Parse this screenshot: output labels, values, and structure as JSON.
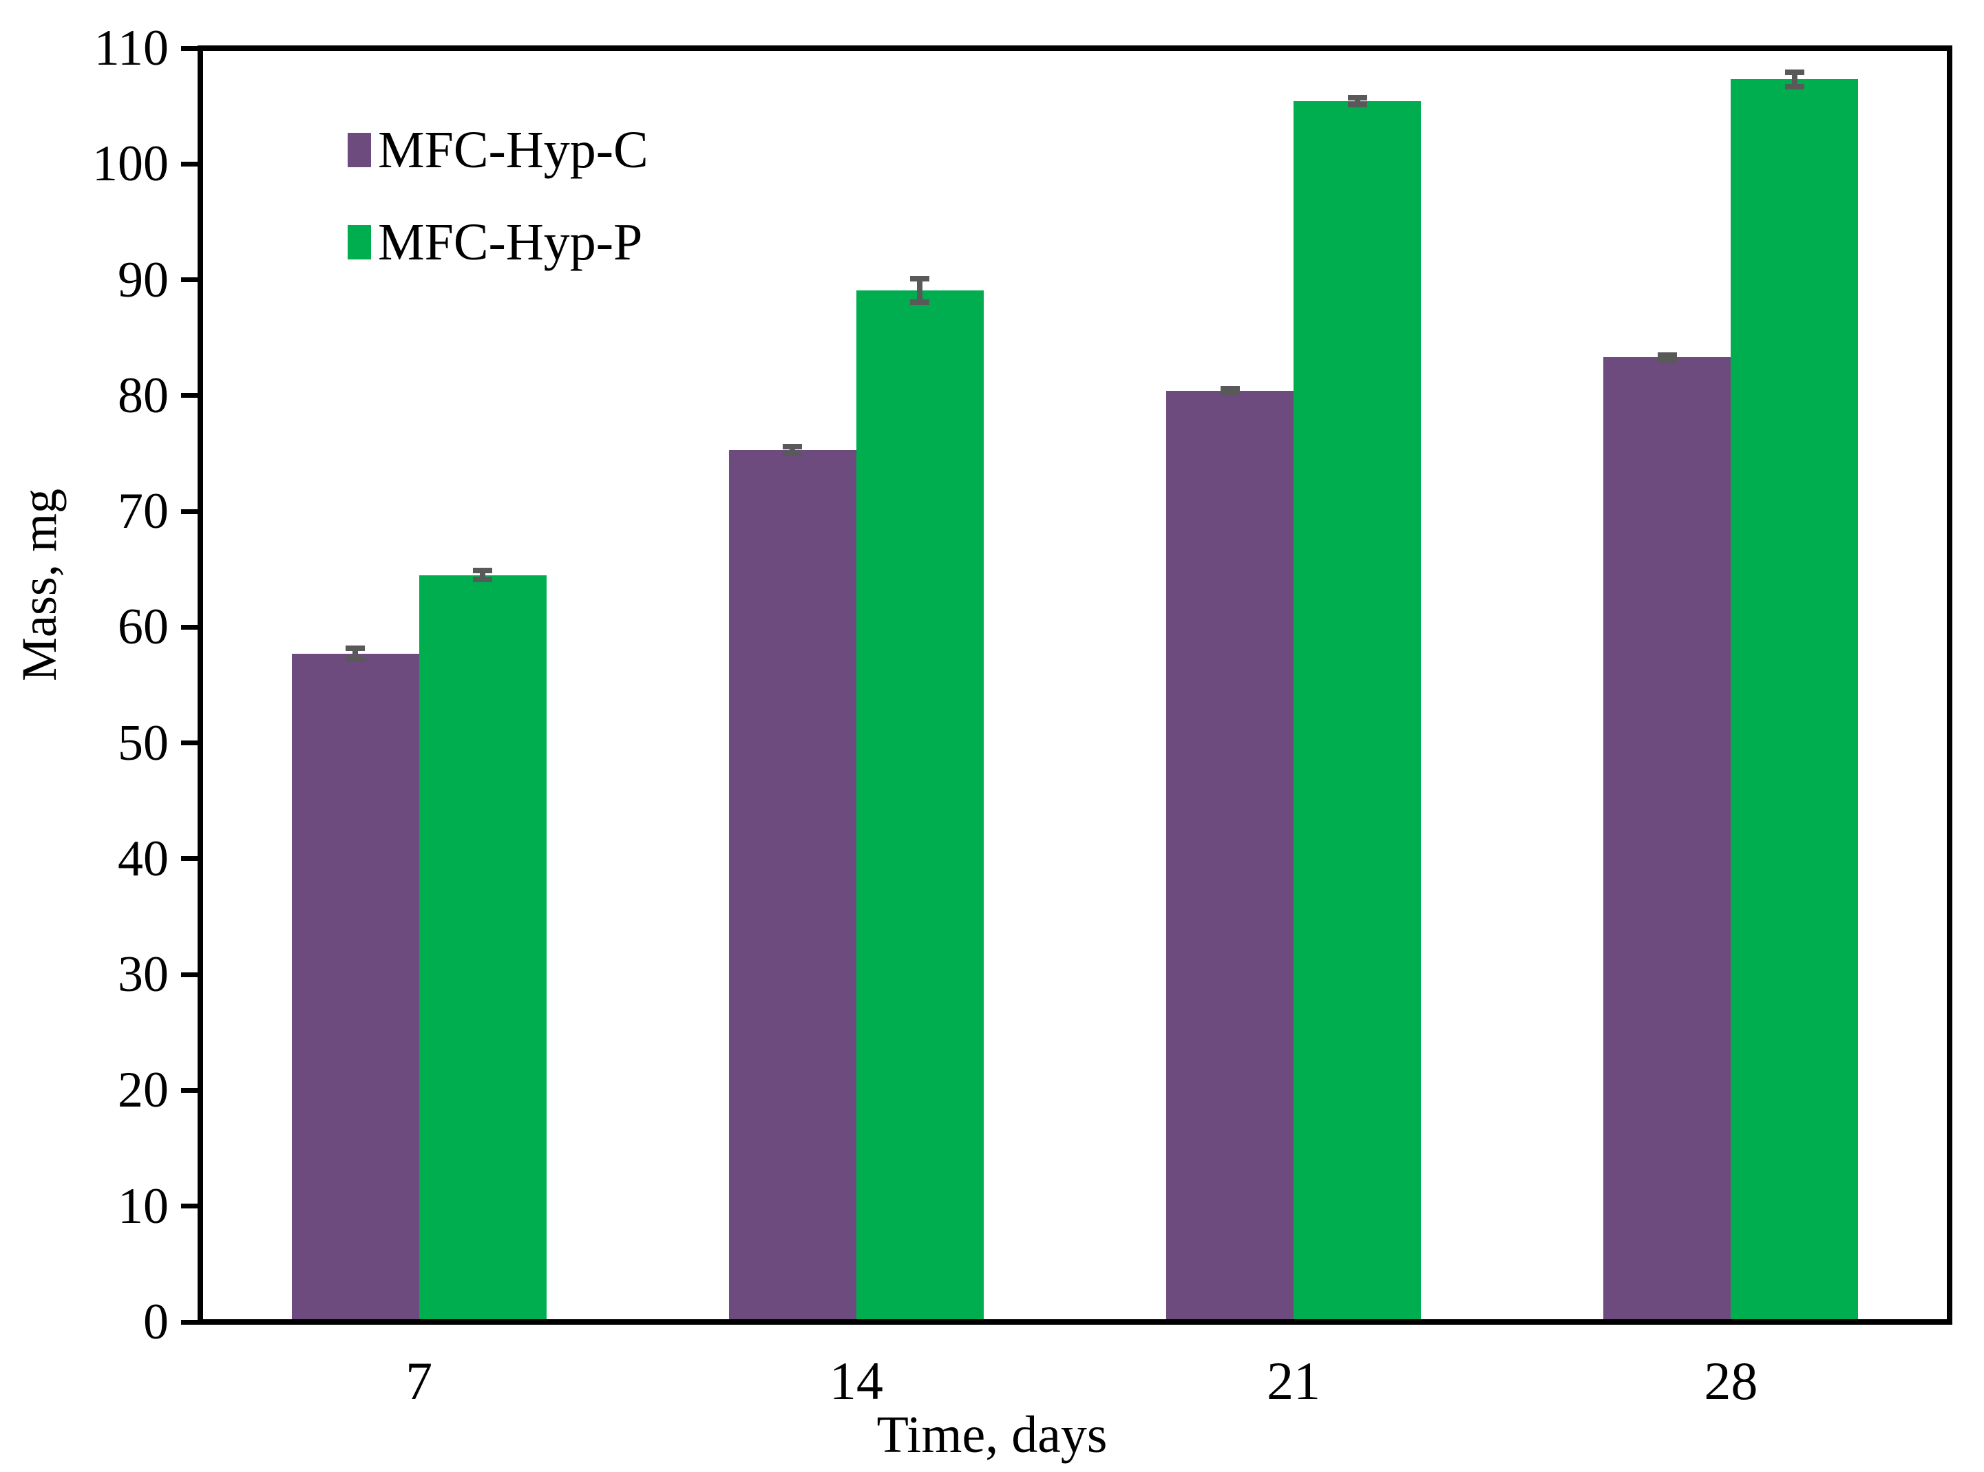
{
  "chart_data": {
    "type": "bar",
    "title": "",
    "xlabel": "Time, days",
    "ylabel": "Mass, mg",
    "categories": [
      "7",
      "14",
      "21",
      "28"
    ],
    "series": [
      {
        "name": "MFC-Hyp-C",
        "color": "#6e4b7e",
        "values": [
          57.7,
          75.3,
          80.4,
          83.3
        ],
        "errors": [
          0.5,
          0.3,
          0.2,
          0.2
        ]
      },
      {
        "name": "MFC-Hyp-P",
        "color": "#00ae50",
        "values": [
          64.5,
          89.1,
          105.4,
          107.3
        ],
        "errors": [
          0.4,
          1.0,
          0.3,
          0.6
        ]
      }
    ],
    "ylim": [
      0,
      110
    ],
    "ytick_step": 10,
    "ytick_labels": [
      "0",
      "10",
      "20",
      "30",
      "40",
      "50",
      "60",
      "70",
      "80",
      "90",
      "100",
      "110"
    ],
    "error_bar_color": "#595959",
    "axis_color": "#000000",
    "grid": false,
    "legend_position": "top-left-inside"
  }
}
